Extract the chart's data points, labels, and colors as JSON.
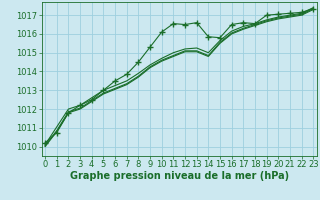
{
  "title": "Graphe pression niveau de la mer (hPa)",
  "background_color": "#cce8f0",
  "grid_color": "#9ecfdf",
  "line_color": "#1a6e2a",
  "x_ticks": [
    0,
    1,
    2,
    3,
    4,
    5,
    6,
    7,
    8,
    9,
    10,
    11,
    12,
    13,
    14,
    15,
    16,
    17,
    18,
    19,
    20,
    21,
    22,
    23
  ],
  "y_ticks": [
    1010,
    1011,
    1012,
    1013,
    1014,
    1015,
    1016,
    1017
  ],
  "ylim": [
    1009.5,
    1017.7
  ],
  "xlim": [
    -0.3,
    23.3
  ],
  "series": [
    [
      1010.2,
      1010.75,
      1011.8,
      1012.2,
      1012.5,
      1013.0,
      1013.5,
      1013.85,
      1014.5,
      1015.3,
      1016.1,
      1016.55,
      1016.5,
      1016.6,
      1015.85,
      1015.8,
      1016.5,
      1016.6,
      1016.55,
      1017.0,
      1017.05,
      1017.1,
      1017.15,
      1017.35
    ],
    [
      1010.1,
      1011.05,
      1012.0,
      1012.2,
      1012.6,
      1013.0,
      1013.25,
      1013.5,
      1013.9,
      1014.35,
      1014.7,
      1015.0,
      1015.2,
      1015.25,
      1015.0,
      1015.65,
      1016.15,
      1016.4,
      1016.55,
      1016.75,
      1016.9,
      1017.0,
      1017.1,
      1017.4
    ],
    [
      1010.05,
      1010.85,
      1011.85,
      1012.05,
      1012.45,
      1012.85,
      1013.1,
      1013.35,
      1013.75,
      1014.25,
      1014.6,
      1014.85,
      1015.1,
      1015.1,
      1014.85,
      1015.55,
      1016.05,
      1016.3,
      1016.5,
      1016.7,
      1016.85,
      1016.95,
      1017.05,
      1017.35
    ],
    [
      1010.0,
      1010.8,
      1011.8,
      1012.0,
      1012.4,
      1012.8,
      1013.05,
      1013.3,
      1013.7,
      1014.2,
      1014.55,
      1014.8,
      1015.05,
      1015.05,
      1014.8,
      1015.5,
      1016.0,
      1016.25,
      1016.45,
      1016.65,
      1016.8,
      1016.9,
      1017.0,
      1017.3
    ]
  ],
  "marker_series": 0,
  "marker": "+",
  "marker_size": 4,
  "marker_lw": 1.0,
  "tick_fontsize": 6,
  "xlabel_fontsize": 7,
  "line_width": 0.8
}
